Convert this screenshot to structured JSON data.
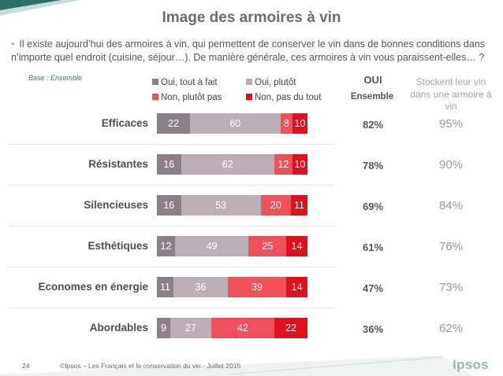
{
  "title": "Image des armoires à vin",
  "intro": "Il existe aujourd’hui des armoires à vin, qui permettent de conserver le vin dans de bonnes conditions dans n’importe quel endroit (cuisine, séjour…). De manière générale, ces armoires à vin vous paraissent-elles… ?",
  "base_label": "Base : Ensemble",
  "oui_header": "OUI",
  "ensemble_header": "Ensemble",
  "stock_header": "Stockent leur vin dans une armoire à vin",
  "footer": {
    "page_number": "24",
    "copyright": "©Ipsos – Les Français et la conservation du vin - Juillet 2015",
    "logo": "Ipsos"
  },
  "colors": {
    "oui_tout_a_fait": "#8d7f8a",
    "oui_plutot": "#bcaeb6",
    "non_plutot_pas": "#f0505a",
    "non_pas_du_tout": "#e0101c",
    "accent_teal": "#93b7b0"
  },
  "chart_data": {
    "type": "bar",
    "orientation": "horizontal",
    "stacked": true,
    "categories": [
      "Efficaces",
      "Résistantes",
      "Silencieuses",
      "Esthétiques",
      "Economes en énergie",
      "Abordables"
    ],
    "series": [
      {
        "name": "Oui, tout à fait",
        "values": [
          22,
          16,
          16,
          12,
          11,
          9
        ]
      },
      {
        "name": "Oui, plutôt",
        "values": [
          60,
          62,
          53,
          49,
          36,
          27
        ]
      },
      {
        "name": "Non, plutôt pas",
        "values": [
          8,
          12,
          20,
          25,
          39,
          42
        ]
      },
      {
        "name": "Non, pas du tout",
        "values": [
          10,
          10,
          11,
          14,
          14,
          22
        ]
      }
    ],
    "oui_ensemble": [
      "82%",
      "78%",
      "69%",
      "61%",
      "47%",
      "36%"
    ],
    "stockent_armoire": [
      "95%",
      "90%",
      "84%",
      "76%",
      "73%",
      "62%"
    ],
    "legend_position": "top",
    "grid": false
  }
}
